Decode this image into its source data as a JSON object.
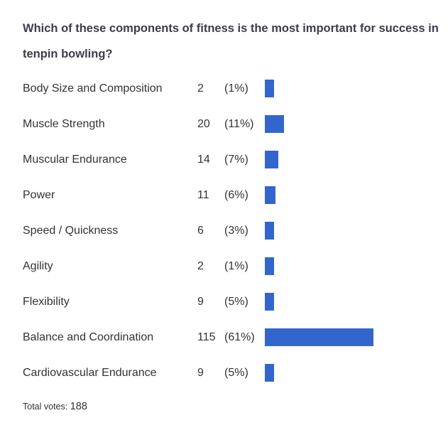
{
  "chart_data": {
    "type": "bar",
    "title": "Which of these components of fitness is the most important for success in tenpin bowling?",
    "categories": [
      "Body Size and Composition",
      "Muscle Strength",
      "Muscular Endurance",
      "Power",
      "Speed / Quickness",
      "Agility",
      "Flexibility",
      "Balance and Coordination",
      "Cardiovascular Endurance"
    ],
    "values": [
      2,
      20,
      14,
      11,
      6,
      2,
      9,
      115,
      9
    ],
    "percent_labels": [
      "(1%)",
      "(11%)",
      "(7%)",
      "(6%)",
      "(3%)",
      "(1%)",
      "(5%)",
      "(61%)",
      "(5%)"
    ],
    "bar_color": "#3366cc",
    "total_label": "Total votes:",
    "total_value": 188
  }
}
